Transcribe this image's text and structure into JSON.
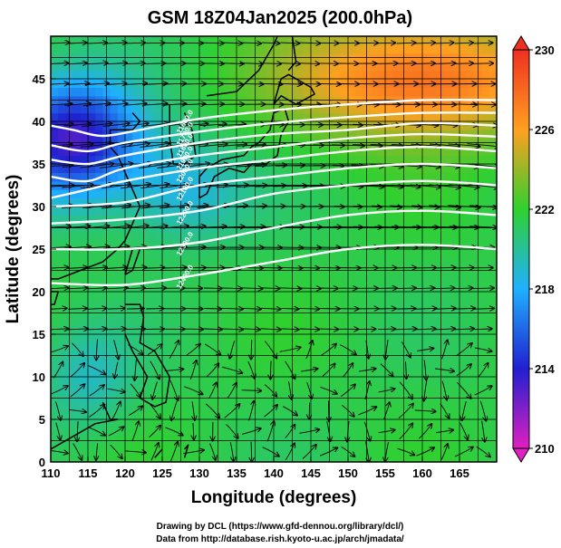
{
  "chart_data": {
    "type": "heatmap",
    "title": "GSM 18Z04Jan2025 (200.0hPa)",
    "xlabel": "Longitude (degrees)",
    "ylabel": "Latitude (degrees)",
    "xlim": [
      110,
      170
    ],
    "ylim": [
      0,
      50
    ],
    "xticks": [
      110,
      115,
      120,
      125,
      130,
      135,
      140,
      145,
      150,
      155,
      160,
      165
    ],
    "yticks": [
      0,
      5,
      10,
      15,
      20,
      25,
      30,
      35,
      40,
      45
    ],
    "colorbar": {
      "min": 210,
      "max": 230,
      "ticks": [
        210,
        214,
        218,
        222,
        226,
        230
      ],
      "colors": [
        "#e020c0",
        "#2020d0",
        "#1fb0ff",
        "#30d030",
        "#ffa020",
        "#f03020"
      ]
    },
    "contours": {
      "levels": [
        11600,
        11700,
        11800,
        11900,
        12000,
        12100,
        12200,
        12300,
        12400
      ],
      "label_format": "%.1f",
      "lines": [
        {
          "level": 12400,
          "points": [
            [
              110,
              21.0
            ],
            [
              120,
              20.8
            ],
            [
              130,
              22.0
            ],
            [
              140,
              23.5
            ],
            [
              150,
              25.0
            ],
            [
              160,
              25.5
            ],
            [
              170,
              25.0
            ]
          ]
        },
        {
          "level": 12300,
          "points": [
            [
              110,
              25.0
            ],
            [
              120,
              25.0
            ],
            [
              130,
              25.8
            ],
            [
              140,
              27.5
            ],
            [
              150,
              29.0
            ],
            [
              160,
              29.5
            ],
            [
              170,
              29.0
            ]
          ]
        },
        {
          "level": 12200,
          "points": [
            [
              110,
              28.0
            ],
            [
              120,
              28.5
            ],
            [
              130,
              29.5
            ],
            [
              140,
              31.5
            ],
            [
              150,
              32.5
            ],
            [
              160,
              33.0
            ],
            [
              170,
              32.5
            ]
          ]
        },
        {
          "level": 12100,
          "points": [
            [
              110,
              30.0
            ],
            [
              120,
              30.5
            ],
            [
              130,
              32.5
            ],
            [
              140,
              33.5
            ],
            [
              150,
              34.5
            ],
            [
              160,
              35.0
            ],
            [
              170,
              34.5
            ]
          ]
        },
        {
          "level": 12000,
          "points": [
            [
              110,
              31.0
            ],
            [
              115,
              32.0
            ],
            [
              120,
              33.0
            ],
            [
              130,
              34.5
            ],
            [
              140,
              35.5
            ],
            [
              150,
              36.5
            ],
            [
              160,
              37.0
            ],
            [
              170,
              36.5
            ]
          ]
        },
        {
          "level": 11900,
          "points": [
            [
              110,
              33.5
            ],
            [
              115,
              33.0
            ],
            [
              120,
              34.5
            ],
            [
              130,
              36.0
            ],
            [
              140,
              37.0
            ],
            [
              150,
              38.0
            ],
            [
              160,
              38.5
            ],
            [
              170,
              38.2
            ]
          ]
        },
        {
          "level": 11800,
          "points": [
            [
              110,
              35.5
            ],
            [
              115,
              35.0
            ],
            [
              120,
              36.0
            ],
            [
              130,
              37.5
            ],
            [
              140,
              38.5
            ],
            [
              150,
              39.0
            ],
            [
              160,
              39.8
            ],
            [
              170,
              39.5
            ]
          ]
        },
        {
          "level": 11700,
          "points": [
            [
              110,
              37.2
            ],
            [
              115,
              36.5
            ],
            [
              120,
              37.5
            ],
            [
              130,
              38.8
            ],
            [
              140,
              39.8
            ],
            [
              150,
              40.5
            ],
            [
              160,
              41.0
            ],
            [
              170,
              41.0
            ]
          ]
        },
        {
          "level": 11600,
          "points": [
            [
              110,
              39.5
            ],
            [
              113,
              39.0
            ],
            [
              117,
              38.3
            ],
            [
              122,
              39.0
            ],
            [
              130,
              40.3
            ],
            [
              140,
              41.3
            ],
            [
              150,
              42.0
            ],
            [
              160,
              42.5
            ],
            [
              170,
              42.5
            ]
          ]
        }
      ]
    }
  },
  "credits": {
    "line1": "Drawing by DCL (https://www.gfd-dennou.org/library/dcl/)",
    "line2": "Data from http://database.rish.kyoto-u.ac.jp/arch/jmadata/"
  }
}
